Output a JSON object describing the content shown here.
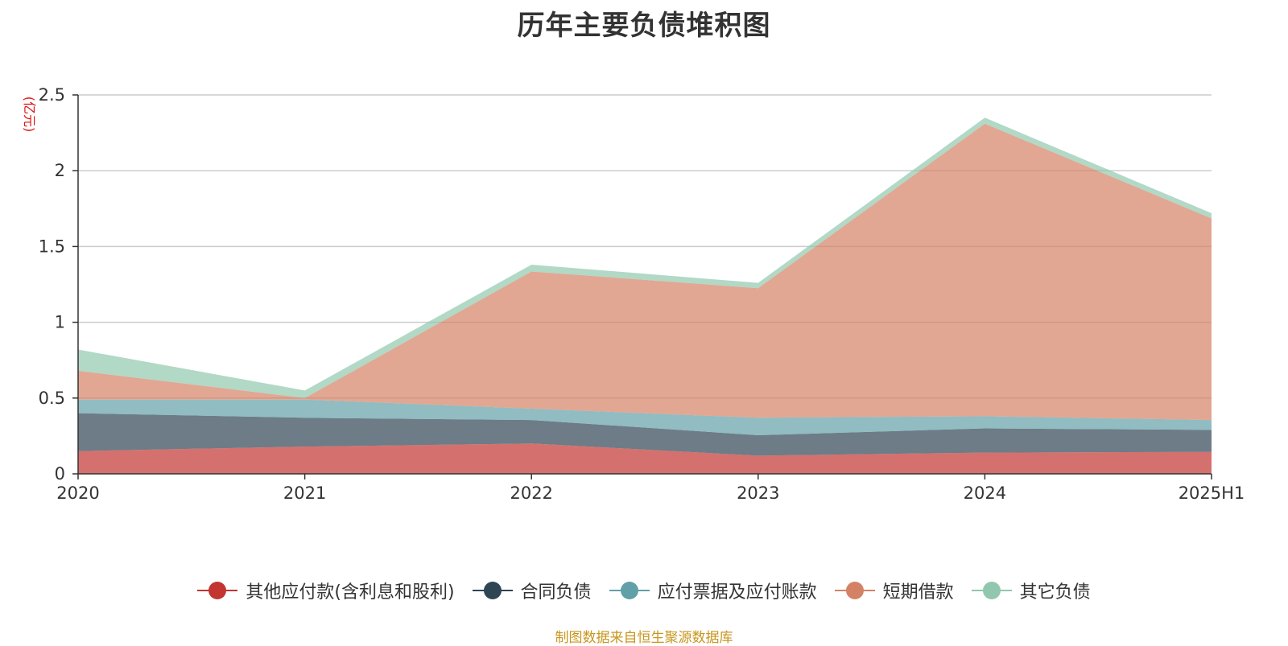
{
  "chart_data": {
    "type": "area",
    "stacked": true,
    "title": "历年主要负债堆积图",
    "ylabel": "(亿元)",
    "xlabel": "",
    "categories": [
      "2020",
      "2021",
      "2022",
      "2023",
      "2024",
      "2025H1"
    ],
    "ylim": [
      0,
      2.5
    ],
    "yticks": [
      0,
      0.5,
      1,
      1.5,
      2,
      2.5
    ],
    "ytick_labels": [
      "0",
      "0.5",
      "1",
      "1.5",
      "2",
      "2.5"
    ],
    "grid": true,
    "legend_position": "bottom",
    "series": [
      {
        "name": "其他应付款(含利息和股利)",
        "color": "#c23531",
        "values": [
          0.15,
          0.18,
          0.2,
          0.12,
          0.14,
          0.145
        ]
      },
      {
        "name": "合同负债",
        "color": "#2f4554",
        "values": [
          0.25,
          0.19,
          0.155,
          0.135,
          0.16,
          0.145
        ]
      },
      {
        "name": "应付票据及应付账款",
        "color": "#61a0a8",
        "values": [
          0.09,
          0.12,
          0.075,
          0.115,
          0.08,
          0.065
        ]
      },
      {
        "name": "短期借款",
        "color": "#d48265",
        "values": [
          0.19,
          0.01,
          0.905,
          0.855,
          1.93,
          1.33
        ]
      },
      {
        "name": "其它负债",
        "color": "#91c7ae",
        "values": [
          0.14,
          0.05,
          0.045,
          0.035,
          0.04,
          0.035
        ]
      }
    ],
    "source_note": "制图数据来自恒生聚源数据库"
  }
}
